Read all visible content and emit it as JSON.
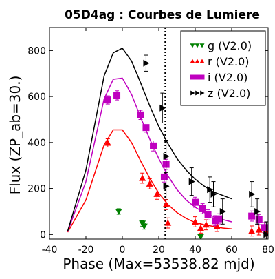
{
  "chart_data": {
    "type": "scatter",
    "title": "05D4ag : Courbes de Lumiere",
    "xlabel": "Phase (Max=53538.82 mjd)",
    "ylabel": "Flux (ZP_ab=30.)",
    "xlim": [
      -40,
      80
    ],
    "ylim": [
      -20,
      900
    ],
    "xticks": [
      "-40",
      "-20",
      "0",
      "20",
      "40",
      "60",
      "80"
    ],
    "yticks": [
      "0",
      "200",
      "400",
      "600",
      "800"
    ],
    "xtick_values": [
      -40,
      -20,
      0,
      20,
      40,
      60,
      80
    ],
    "ytick_values": [
      0,
      200,
      400,
      600,
      800
    ],
    "vline_x": 23.5,
    "legend_position": "top-right",
    "series": [
      {
        "name": "g (V2.0)",
        "color": "#008000",
        "marker": "triangle-down",
        "points": [
          [
            -2,
            100,
            12
          ],
          [
            11,
            48,
            12
          ],
          [
            12,
            35,
            12
          ],
          [
            43,
            -10,
            12
          ]
        ],
        "curve": []
      },
      {
        "name": "r (V2.0)",
        "color": "#ff0000",
        "marker": "triangle-up",
        "points": [
          [
            -8,
            398,
            18
          ],
          [
            11,
            245,
            22
          ],
          [
            15,
            220,
            22
          ],
          [
            19,
            175,
            22
          ],
          [
            24,
            130,
            22
          ],
          [
            25,
            50,
            22
          ],
          [
            40,
            55,
            22
          ],
          [
            43,
            28,
            22
          ],
          [
            46,
            42,
            22
          ],
          [
            52,
            35,
            22
          ],
          [
            71,
            15,
            22
          ],
          [
            75,
            20,
            22
          ],
          [
            79,
            15,
            22
          ]
        ],
        "curve": [
          [
            -30,
            10
          ],
          [
            -20,
            150
          ],
          [
            -10,
            390
          ],
          [
            -5,
            455
          ],
          [
            0,
            455
          ],
          [
            5,
            400
          ],
          [
            10,
            320
          ],
          [
            15,
            245
          ],
          [
            20,
            180
          ],
          [
            25,
            130
          ],
          [
            30,
            95
          ],
          [
            35,
            70
          ],
          [
            40,
            52
          ],
          [
            45,
            42
          ],
          [
            50,
            35
          ],
          [
            55,
            28
          ],
          [
            60,
            24
          ]
        ]
      },
      {
        "name": "i (V2.0)",
        "color": "#bf00bf",
        "marker": "square",
        "points": [
          [
            -8,
            585,
            18
          ],
          [
            -3,
            605,
            20
          ],
          [
            10,
            520,
            20
          ],
          [
            13,
            465,
            20
          ],
          [
            17,
            385,
            22
          ],
          [
            24,
            305,
            22
          ],
          [
            23,
            250,
            22
          ],
          [
            40,
            140,
            22
          ],
          [
            44,
            112,
            22
          ],
          [
            47,
            85,
            22
          ],
          [
            51,
            60,
            22
          ],
          [
            53,
            68,
            22
          ],
          [
            71,
            80,
            22
          ],
          [
            75,
            65,
            22
          ],
          [
            78,
            30,
            22
          ]
        ],
        "curve": [
          [
            -30,
            12
          ],
          [
            -20,
            230
          ],
          [
            -10,
            590
          ],
          [
            -5,
            675
          ],
          [
            0,
            680
          ],
          [
            5,
            610
          ],
          [
            10,
            510
          ],
          [
            15,
            415
          ],
          [
            20,
            330
          ],
          [
            25,
            255
          ],
          [
            30,
            195
          ],
          [
            35,
            150
          ],
          [
            40,
            118
          ],
          [
            45,
            95
          ],
          [
            50,
            78
          ],
          [
            55,
            65
          ],
          [
            60,
            55
          ]
        ]
      },
      {
        "name": "z (V2.0)",
        "color": "#000000",
        "marker": "triangle-right",
        "points": [
          [
            13,
            745,
            35
          ],
          [
            22,
            550,
            65
          ],
          [
            24,
            340,
            70
          ],
          [
            24,
            210,
            60
          ],
          [
            38,
            230,
            60
          ],
          [
            48,
            195,
            55
          ],
          [
            50,
            175,
            55
          ],
          [
            55,
            100,
            55
          ],
          [
            71,
            175,
            55
          ],
          [
            74,
            100,
            55
          ],
          [
            79,
            0,
            55
          ]
        ],
        "curve": [
          [
            -30,
            15
          ],
          [
            -20,
            280
          ],
          [
            -10,
            690
          ],
          [
            -5,
            790
          ],
          [
            0,
            810
          ],
          [
            5,
            755
          ],
          [
            10,
            660
          ],
          [
            15,
            560
          ],
          [
            20,
            470
          ],
          [
            25,
            395
          ],
          [
            30,
            330
          ],
          [
            35,
            280
          ],
          [
            40,
            240
          ],
          [
            45,
            210
          ],
          [
            50,
            185
          ],
          [
            55,
            170
          ],
          [
            60,
            155
          ]
        ]
      }
    ]
  }
}
